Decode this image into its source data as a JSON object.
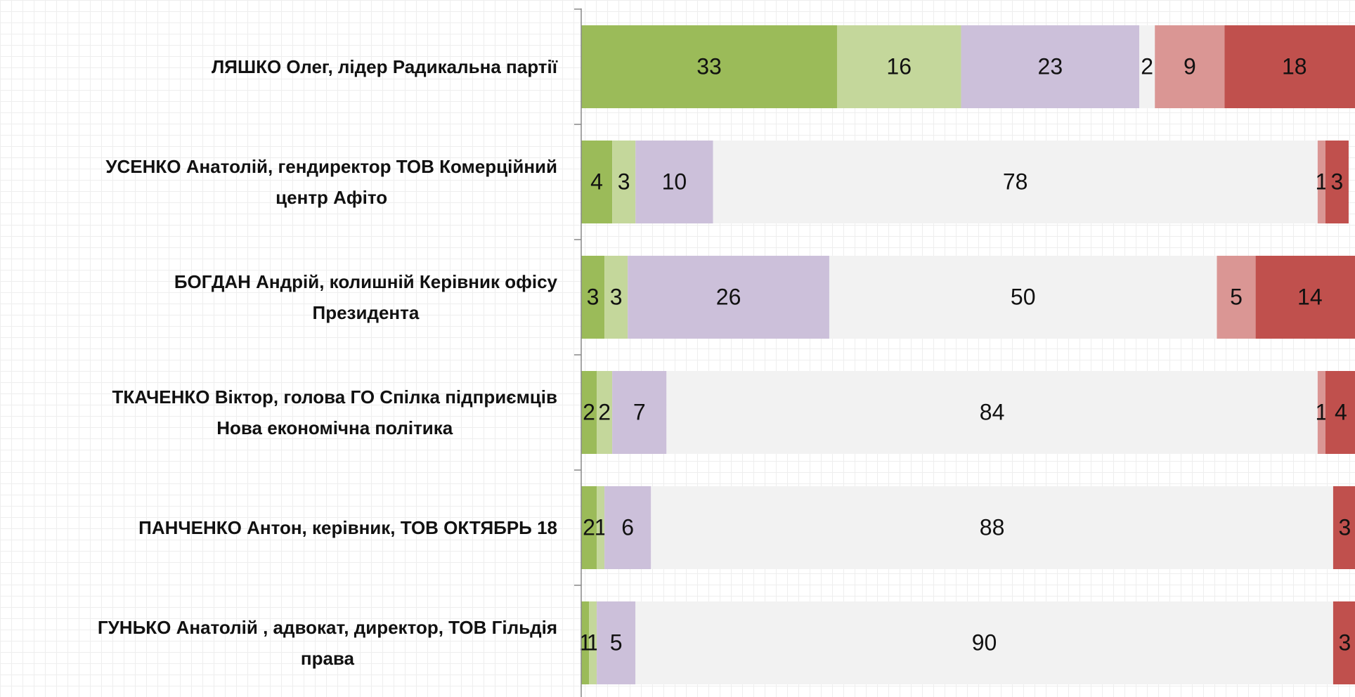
{
  "chart_data": {
    "type": "stacked_bar_horizontal",
    "categories": [
      "ЛЯШКО Олег, лідер Радикальна партії",
      "УСЕНКО Анатолій, гендиректор ТОВ Комерційний\nцентр Афіто",
      "БОГДАН Андрій, колишній Керівник офісу\nПрезидента",
      "ТКАЧЕНКО Віктор, голова ГО Спілка підприємців\nНова економічна політика",
      "ПАНЧЕНКО Антон, керівник, ТОВ ОКТЯБРЬ 18",
      "ГУНЬКО Анатолій , адвокат, директор, ТОВ Гільдія\nправа"
    ],
    "series": [
      {
        "color": "#9bbb59",
        "values": [
          33,
          4,
          3,
          2,
          2,
          1
        ]
      },
      {
        "color": "#c4d79b",
        "values": [
          16,
          3,
          3,
          2,
          1,
          1
        ]
      },
      {
        "color": "#ccc0da",
        "values": [
          23,
          10,
          26,
          7,
          6,
          5
        ]
      },
      {
        "color": "#f2f2f2",
        "values": [
          2,
          78,
          50,
          84,
          88,
          90
        ]
      },
      {
        "color": "#da9694",
        "values": [
          9,
          1,
          5,
          1,
          null,
          null
        ]
      },
      {
        "color": "#c0504d",
        "values": [
          18,
          3,
          14,
          4,
          3,
          3
        ]
      }
    ],
    "xlim": [
      0,
      100
    ]
  }
}
